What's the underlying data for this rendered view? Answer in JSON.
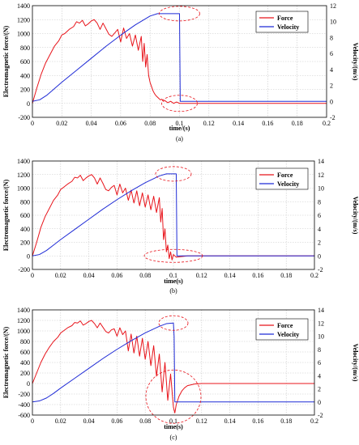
{
  "figure": {
    "subplots": [
      {
        "caption": "(a)"
      },
      {
        "caption": "(b)"
      },
      {
        "caption": "(c)"
      }
    ]
  },
  "colors": {
    "force": "#e8141b",
    "velocity": "#1f2bd6",
    "grid": "#c8c8c8",
    "ellipse": "#e8141b"
  },
  "chart_data": [
    {
      "type": "line",
      "xlabel": "time/(s)",
      "ylabel": "Electromagnetic force/(N)",
      "y2label": "Velocity/(m/s)",
      "xlim": [
        0,
        0.2
      ],
      "ylim": [
        -200,
        1400
      ],
      "y2lim": [
        -2,
        12
      ],
      "xticks": [
        "0",
        "0.02",
        "0.04",
        "0.06",
        "0.08",
        "0.1",
        "0.12",
        "0.14",
        "0.16",
        "0.18",
        "0.2"
      ],
      "yticks": [
        "-200",
        "0",
        "200",
        "400",
        "600",
        "800",
        "1000",
        "1200",
        "1400"
      ],
      "y2ticks": [
        "-2",
        "0",
        "2",
        "4",
        "6",
        "8",
        "10",
        "12"
      ],
      "legend_position": "top-right",
      "grid": true,
      "series": [
        {
          "name": "Force",
          "axis": "left",
          "x": [
            0,
            0.003,
            0.006,
            0.009,
            0.012,
            0.015,
            0.018,
            0.02,
            0.022,
            0.025,
            0.028,
            0.03,
            0.032,
            0.034,
            0.036,
            0.038,
            0.04,
            0.042,
            0.044,
            0.046,
            0.048,
            0.05,
            0.052,
            0.054,
            0.056,
            0.058,
            0.06,
            0.062,
            0.064,
            0.066,
            0.068,
            0.07,
            0.072,
            0.074,
            0.075,
            0.076,
            0.077,
            0.078,
            0.079,
            0.08,
            0.081,
            0.082,
            0.083,
            0.084,
            0.085,
            0.086,
            0.087,
            0.088,
            0.089,
            0.09,
            0.092,
            0.094,
            0.096,
            0.098,
            0.1,
            0.1005,
            0.11,
            0.2
          ],
          "y": [
            0,
            220,
            420,
            580,
            700,
            820,
            900,
            980,
            1000,
            1060,
            1100,
            1170,
            1150,
            1190,
            1110,
            1140,
            1180,
            1200,
            1150,
            1060,
            1150,
            1070,
            990,
            960,
            1010,
            1060,
            880,
            1080,
            930,
            1000,
            820,
            980,
            760,
            960,
            600,
            860,
            520,
            700,
            400,
            300,
            240,
            180,
            140,
            110,
            90,
            70,
            50,
            60,
            30,
            40,
            10,
            30,
            0,
            20,
            0,
            0,
            0,
            0
          ]
        },
        {
          "name": "Velocity",
          "axis": "right",
          "x": [
            0,
            0.005,
            0.01,
            0.015,
            0.02,
            0.03,
            0.04,
            0.05,
            0.06,
            0.07,
            0.08,
            0.085,
            0.09,
            0.1,
            0.1005,
            0.105,
            0.2
          ],
          "y": [
            0,
            0.2,
            0.8,
            1.6,
            2.4,
            3.9,
            5.4,
            6.9,
            8.3,
            9.6,
            10.7,
            11,
            11,
            11,
            0,
            0,
            0
          ]
        }
      ]
    },
    {
      "type": "line",
      "xlabel": "time(s)",
      "ylabel": "Electromagnetic force/(N)",
      "y2label": "Velocity/(m/s)",
      "xlim": [
        0,
        0.2
      ],
      "ylim": [
        -200,
        1400
      ],
      "y2lim": [
        -2,
        14
      ],
      "xticks": [
        "0",
        "0.02",
        "0.04",
        "0.06",
        "0.08",
        "0.1",
        "0.12",
        "0.14",
        "0.16",
        "0.18",
        "0.2"
      ],
      "yticks": [
        "-200",
        "0",
        "200",
        "400",
        "600",
        "800",
        "1000",
        "1200",
        "1400"
      ],
      "y2ticks": [
        "-2",
        "0",
        "2",
        "4",
        "6",
        "8",
        "10",
        "12",
        "14"
      ],
      "legend_position": "top-right",
      "grid": true,
      "series": [
        {
          "name": "Force",
          "axis": "left",
          "x": [
            0,
            0.003,
            0.006,
            0.009,
            0.012,
            0.015,
            0.018,
            0.02,
            0.022,
            0.025,
            0.028,
            0.03,
            0.032,
            0.034,
            0.036,
            0.038,
            0.04,
            0.042,
            0.044,
            0.046,
            0.048,
            0.05,
            0.052,
            0.054,
            0.056,
            0.058,
            0.06,
            0.062,
            0.064,
            0.066,
            0.068,
            0.07,
            0.072,
            0.074,
            0.076,
            0.078,
            0.08,
            0.082,
            0.084,
            0.086,
            0.088,
            0.09,
            0.091,
            0.092,
            0.093,
            0.094,
            0.095,
            0.096,
            0.097,
            0.098,
            0.099,
            0.1,
            0.102,
            0.11,
            0.2
          ],
          "y": [
            0,
            200,
            420,
            580,
            700,
            820,
            900,
            980,
            1010,
            1060,
            1100,
            1160,
            1150,
            1190,
            1110,
            1150,
            1180,
            1200,
            1150,
            1060,
            1150,
            1070,
            980,
            960,
            1010,
            1040,
            900,
            1060,
            930,
            1000,
            820,
            970,
            780,
            960,
            740,
            930,
            720,
            900,
            680,
            880,
            640,
            860,
            500,
            700,
            240,
            400,
            60,
            160,
            -40,
            60,
            -60,
            20,
            -20,
            0,
            0
          ]
        },
        {
          "name": "Velocity",
          "axis": "right",
          "x": [
            0,
            0.005,
            0.01,
            0.015,
            0.02,
            0.03,
            0.04,
            0.05,
            0.06,
            0.07,
            0.08,
            0.09,
            0.095,
            0.1,
            0.102,
            0.1025,
            0.11,
            0.2
          ],
          "y": [
            0,
            0.2,
            0.8,
            1.6,
            2.4,
            3.9,
            5.4,
            6.9,
            8.3,
            9.6,
            10.8,
            11.8,
            12.1,
            12.1,
            12.1,
            0,
            0,
            0
          ]
        }
      ]
    },
    {
      "type": "line",
      "xlabel": "time(s)",
      "ylabel": "Electromagnetic force/(N)",
      "y2label": "Velocity/(m/s)",
      "xlim": [
        0,
        0.2
      ],
      "ylim": [
        -600,
        1400
      ],
      "y2lim": [
        -2,
        14
      ],
      "xticks": [
        "0",
        "0.02",
        "0.04",
        "0.06",
        "0.08",
        "0.1",
        "0.12",
        "0.14",
        "0.16",
        "0.18",
        "0.2"
      ],
      "yticks": [
        "-600",
        "-400",
        "-200",
        "0",
        "200",
        "400",
        "600",
        "800",
        "1000",
        "1200",
        "1400"
      ],
      "y2ticks": [
        "-2",
        "0",
        "2",
        "4",
        "6",
        "8",
        "10",
        "12",
        "14"
      ],
      "legend_position": "top-right",
      "grid": true,
      "series": [
        {
          "name": "Force",
          "axis": "left",
          "x": [
            0,
            0.003,
            0.006,
            0.009,
            0.012,
            0.015,
            0.018,
            0.02,
            0.022,
            0.025,
            0.028,
            0.03,
            0.032,
            0.034,
            0.036,
            0.038,
            0.04,
            0.042,
            0.044,
            0.046,
            0.048,
            0.05,
            0.052,
            0.054,
            0.056,
            0.058,
            0.06,
            0.062,
            0.064,
            0.066,
            0.068,
            0.07,
            0.072,
            0.074,
            0.076,
            0.078,
            0.08,
            0.082,
            0.084,
            0.086,
            0.088,
            0.09,
            0.092,
            0.094,
            0.096,
            0.098,
            0.1,
            0.101,
            0.102,
            0.104,
            0.106,
            0.108,
            0.11,
            0.115,
            0.12,
            0.13,
            0.2
          ],
          "y": [
            0,
            200,
            400,
            560,
            690,
            800,
            880,
            960,
            1000,
            1060,
            1100,
            1160,
            1150,
            1190,
            1110,
            1140,
            1180,
            1200,
            1140,
            1060,
            1150,
            1070,
            990,
            960,
            1020,
            1040,
            900,
            1060,
            930,
            1000,
            620,
            940,
            580,
            900,
            520,
            860,
            460,
            800,
            340,
            720,
            140,
            560,
            -160,
            400,
            -320,
            180,
            -450,
            -560,
            -400,
            -240,
            -140,
            -80,
            -40,
            -10,
            0,
            0,
            0
          ]
        },
        {
          "name": "Velocity",
          "axis": "right",
          "x": [
            0,
            0.005,
            0.01,
            0.015,
            0.02,
            0.03,
            0.04,
            0.05,
            0.06,
            0.07,
            0.08,
            0.09,
            0.095,
            0.1,
            0.1005,
            0.101,
            0.103,
            0.2
          ],
          "y": [
            0,
            0.15,
            0.6,
            1.3,
            2.1,
            3.6,
            5.1,
            6.6,
            8,
            9.3,
            10.5,
            11.5,
            11.9,
            12,
            10,
            0,
            0,
            0
          ]
        }
      ]
    }
  ]
}
